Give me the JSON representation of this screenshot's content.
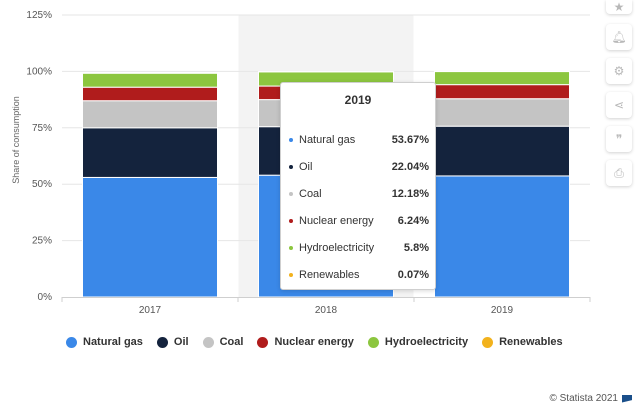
{
  "chart_data": {
    "type": "bar",
    "stacked": true,
    "categories": [
      "2017",
      "2018",
      "2019"
    ],
    "ylabel": "Share of consumption",
    "ylim": [
      0,
      125
    ],
    "yticks": [
      0,
      25,
      50,
      75,
      100,
      125
    ],
    "yticks_labels": [
      "0%",
      "25%",
      "50%",
      "75%",
      "100%",
      "125%"
    ],
    "grid": true,
    "legend_position": "bottom",
    "series": [
      {
        "name": "Natural gas",
        "color": "#3a88e8",
        "values": [
          53.0,
          54.0,
          53.67
        ]
      },
      {
        "name": "Oil",
        "color": "#14233d",
        "values": [
          22.0,
          21.5,
          22.04
        ]
      },
      {
        "name": "Coal",
        "color": "#c4c4c4",
        "values": [
          12.0,
          12.0,
          12.18
        ]
      },
      {
        "name": "Nuclear energy",
        "color": "#b01c1c",
        "values": [
          6.0,
          6.0,
          6.24
        ]
      },
      {
        "name": "Hydroelectricity",
        "color": "#8cc63f",
        "values": [
          6.2,
          6.3,
          5.8
        ]
      },
      {
        "name": "Renewables",
        "color": "#f2b21d",
        "values": [
          0.1,
          0.1,
          0.07
        ]
      }
    ],
    "tooltip": {
      "category": "2019",
      "rows": [
        {
          "name": "Natural gas",
          "value": "53.67%"
        },
        {
          "name": "Oil",
          "value": "22.04%"
        },
        {
          "name": "Coal",
          "value": "12.18%"
        },
        {
          "name": "Nuclear energy",
          "value": "6.24%"
        },
        {
          "name": "Hydroelectricity",
          "value": "5.8%"
        },
        {
          "name": "Renewables",
          "value": "0.07%"
        }
      ]
    },
    "highlighted_category": "2018"
  },
  "sidebar": {
    "icons": [
      "star-icon",
      "bell-icon",
      "gear-icon",
      "share-icon",
      "quote-icon",
      "print-icon"
    ]
  },
  "credit": "© Statista 2021"
}
